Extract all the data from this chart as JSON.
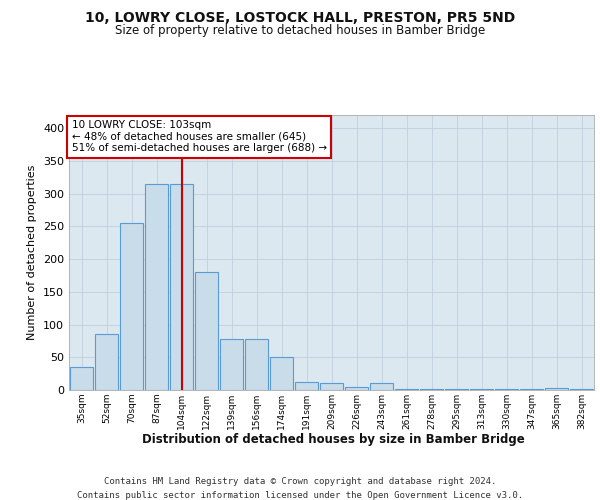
{
  "title1": "10, LOWRY CLOSE, LOSTOCK HALL, PRESTON, PR5 5ND",
  "title2": "Size of property relative to detached houses in Bamber Bridge",
  "xlabel": "Distribution of detached houses by size in Bamber Bridge",
  "ylabel": "Number of detached properties",
  "categories": [
    "35sqm",
    "52sqm",
    "70sqm",
    "87sqm",
    "104sqm",
    "122sqm",
    "139sqm",
    "156sqm",
    "174sqm",
    "191sqm",
    "209sqm",
    "226sqm",
    "243sqm",
    "261sqm",
    "278sqm",
    "295sqm",
    "313sqm",
    "330sqm",
    "347sqm",
    "365sqm",
    "382sqm"
  ],
  "bar_heights": [
    35,
    85,
    255,
    315,
    315,
    180,
    78,
    78,
    50,
    12,
    10,
    5,
    10,
    1,
    1,
    1,
    1,
    1,
    1,
    3,
    1
  ],
  "bar_color": "#c9dcea",
  "bar_edge_color": "#5b9bd5",
  "grid_color": "#bfcfdc",
  "background_color": "#dce8f0",
  "red_line_x": 4,
  "annotation_text": "10 LOWRY CLOSE: 103sqm\n← 48% of detached houses are smaller (645)\n51% of semi-detached houses are larger (688) →",
  "annotation_box_color": "#ffffff",
  "annotation_box_edge": "#cc0000",
  "footer_line1": "Contains HM Land Registry data © Crown copyright and database right 2024.",
  "footer_line2": "Contains public sector information licensed under the Open Government Licence v3.0.",
  "ylim": [
    0,
    420
  ],
  "yticks": [
    0,
    50,
    100,
    150,
    200,
    250,
    300,
    350,
    400
  ]
}
